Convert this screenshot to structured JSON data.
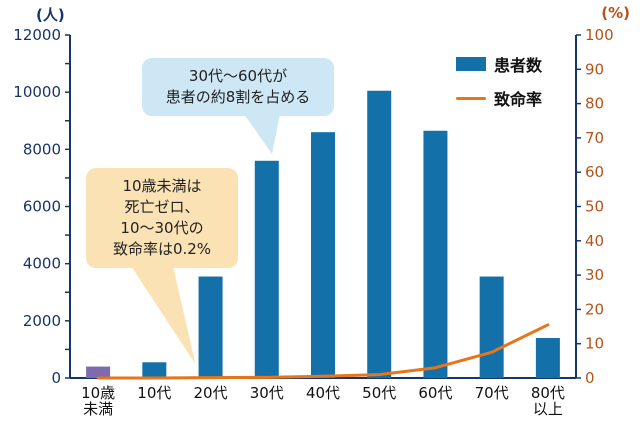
{
  "chart_data": {
    "type": "bar",
    "title": "",
    "categories": [
      "10歳未満",
      "10代",
      "20代",
      "30代",
      "40代",
      "50代",
      "60代",
      "70代",
      "80代以上"
    ],
    "categories_display": [
      "10歳|未満",
      "10代",
      "20代",
      "30代",
      "40代",
      "50代",
      "60代",
      "70代",
      "80代|以上"
    ],
    "series": [
      {
        "name": "患者数",
        "kind": "bar",
        "axis": "left",
        "color": "#1470a8",
        "values": [
          400,
          550,
          3550,
          7600,
          8600,
          10050,
          8650,
          3550,
          1400
        ]
      },
      {
        "name": "致命率",
        "kind": "line",
        "axis": "right",
        "color": "#e8751a",
        "values": [
          0,
          0,
          0.1,
          0.2,
          0.5,
          1.0,
          3.0,
          7.5,
          15.5
        ]
      }
    ],
    "first_bar_color": "#7d6bae",
    "left_axis": {
      "unit": "(人)",
      "min": 0,
      "max": 12000,
      "label_step": 2000,
      "minor_step": 1000,
      "text_color": "#17356b"
    },
    "right_axis": {
      "unit": "(%)",
      "min": 0,
      "max": 100,
      "label_step": 10,
      "text_color": "#b5541a"
    },
    "axis_color": "#17356b",
    "grid": false,
    "legend_position": "top-right",
    "legend": [
      {
        "label": "患者数",
        "swatch": "bar",
        "color": "#1470a8"
      },
      {
        "label": "致命率",
        "swatch": "line",
        "color": "#e8751a"
      }
    ],
    "annotations": [
      {
        "id": "blue",
        "bg": "#cde7f4",
        "lines": [
          "30代〜60代が",
          "患者の約8割を占める"
        ]
      },
      {
        "id": "orange",
        "bg": "#fbe2b4",
        "lines": [
          "10歳未満は",
          "死亡ゼロ、",
          "10〜30代の",
          "致命率は0.2%"
        ]
      }
    ]
  }
}
